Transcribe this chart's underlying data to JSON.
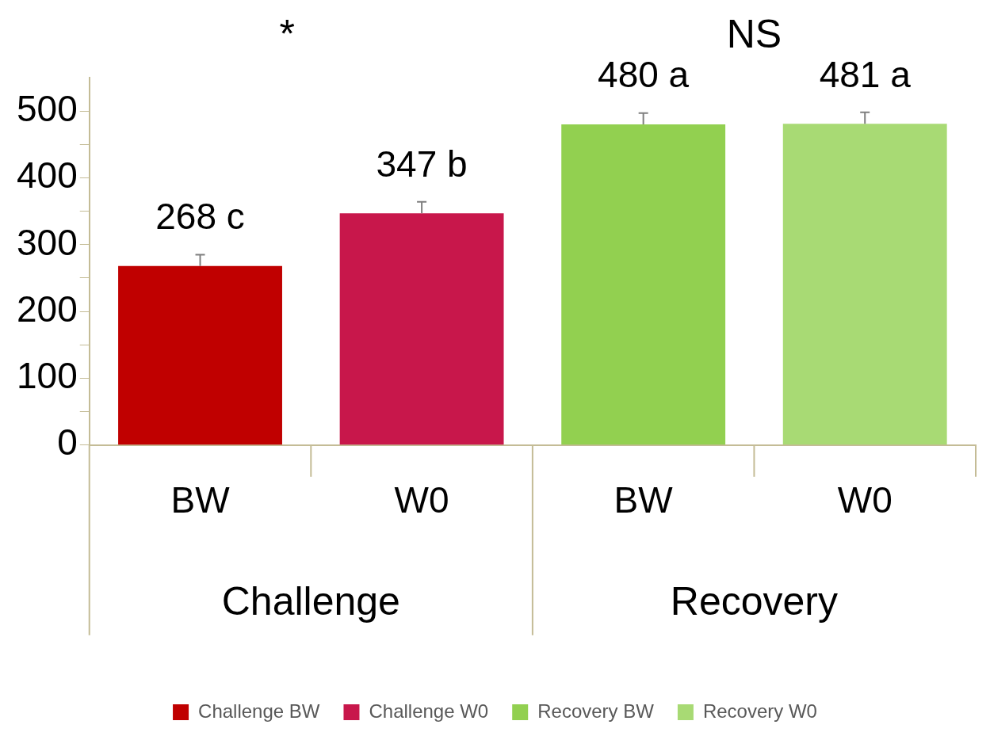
{
  "chart_data": {
    "type": "bar",
    "categories": [
      "BW",
      "W0",
      "BW",
      "W0"
    ],
    "series": [
      {
        "name": "Challenge BW",
        "color": "#c00000",
        "values": [
          268,
          null,
          null,
          null
        ],
        "errors": [
          [
            268,
            285
          ],
          null,
          null,
          null
        ],
        "value_labels": [
          "268 c",
          null,
          null,
          null
        ]
      },
      {
        "name": "Challenge W0",
        "color": "#c8174b",
        "values": [
          null,
          347,
          null,
          null
        ],
        "errors": [
          null,
          [
            347,
            364
          ],
          null,
          null
        ],
        "value_labels": [
          null,
          "347 b",
          null,
          null
        ]
      },
      {
        "name": "Recovery BW",
        "color": "#92d050",
        "values": [
          null,
          null,
          480,
          null
        ],
        "errors": [
          null,
          null,
          [
            480,
            497
          ],
          null
        ],
        "value_labels": [
          null,
          null,
          "480 a",
          null
        ]
      },
      {
        "name": "Recovery W0",
        "color": "#a8da74",
        "values": [
          null,
          null,
          null,
          481
        ],
        "errors": [
          null,
          null,
          null,
          [
            481,
            498
          ]
        ],
        "value_labels": [
          null,
          null,
          null,
          "481 a"
        ]
      }
    ],
    "ylim": [
      0,
      550
    ],
    "yticks": [
      0,
      {
        "value": 50,
        "label": null
      },
      100,
      {
        "value": 150,
        "label": null
      },
      200,
      {
        "value": 250,
        "label": null
      },
      300,
      {
        "value": 350,
        "label": null
      },
      400,
      {
        "value": 450,
        "label": null
      },
      500
    ],
    "annotations": [
      "*",
      "NS",
      "Challenge",
      "Recovery"
    ],
    "grid": false,
    "legend": "bottom"
  }
}
